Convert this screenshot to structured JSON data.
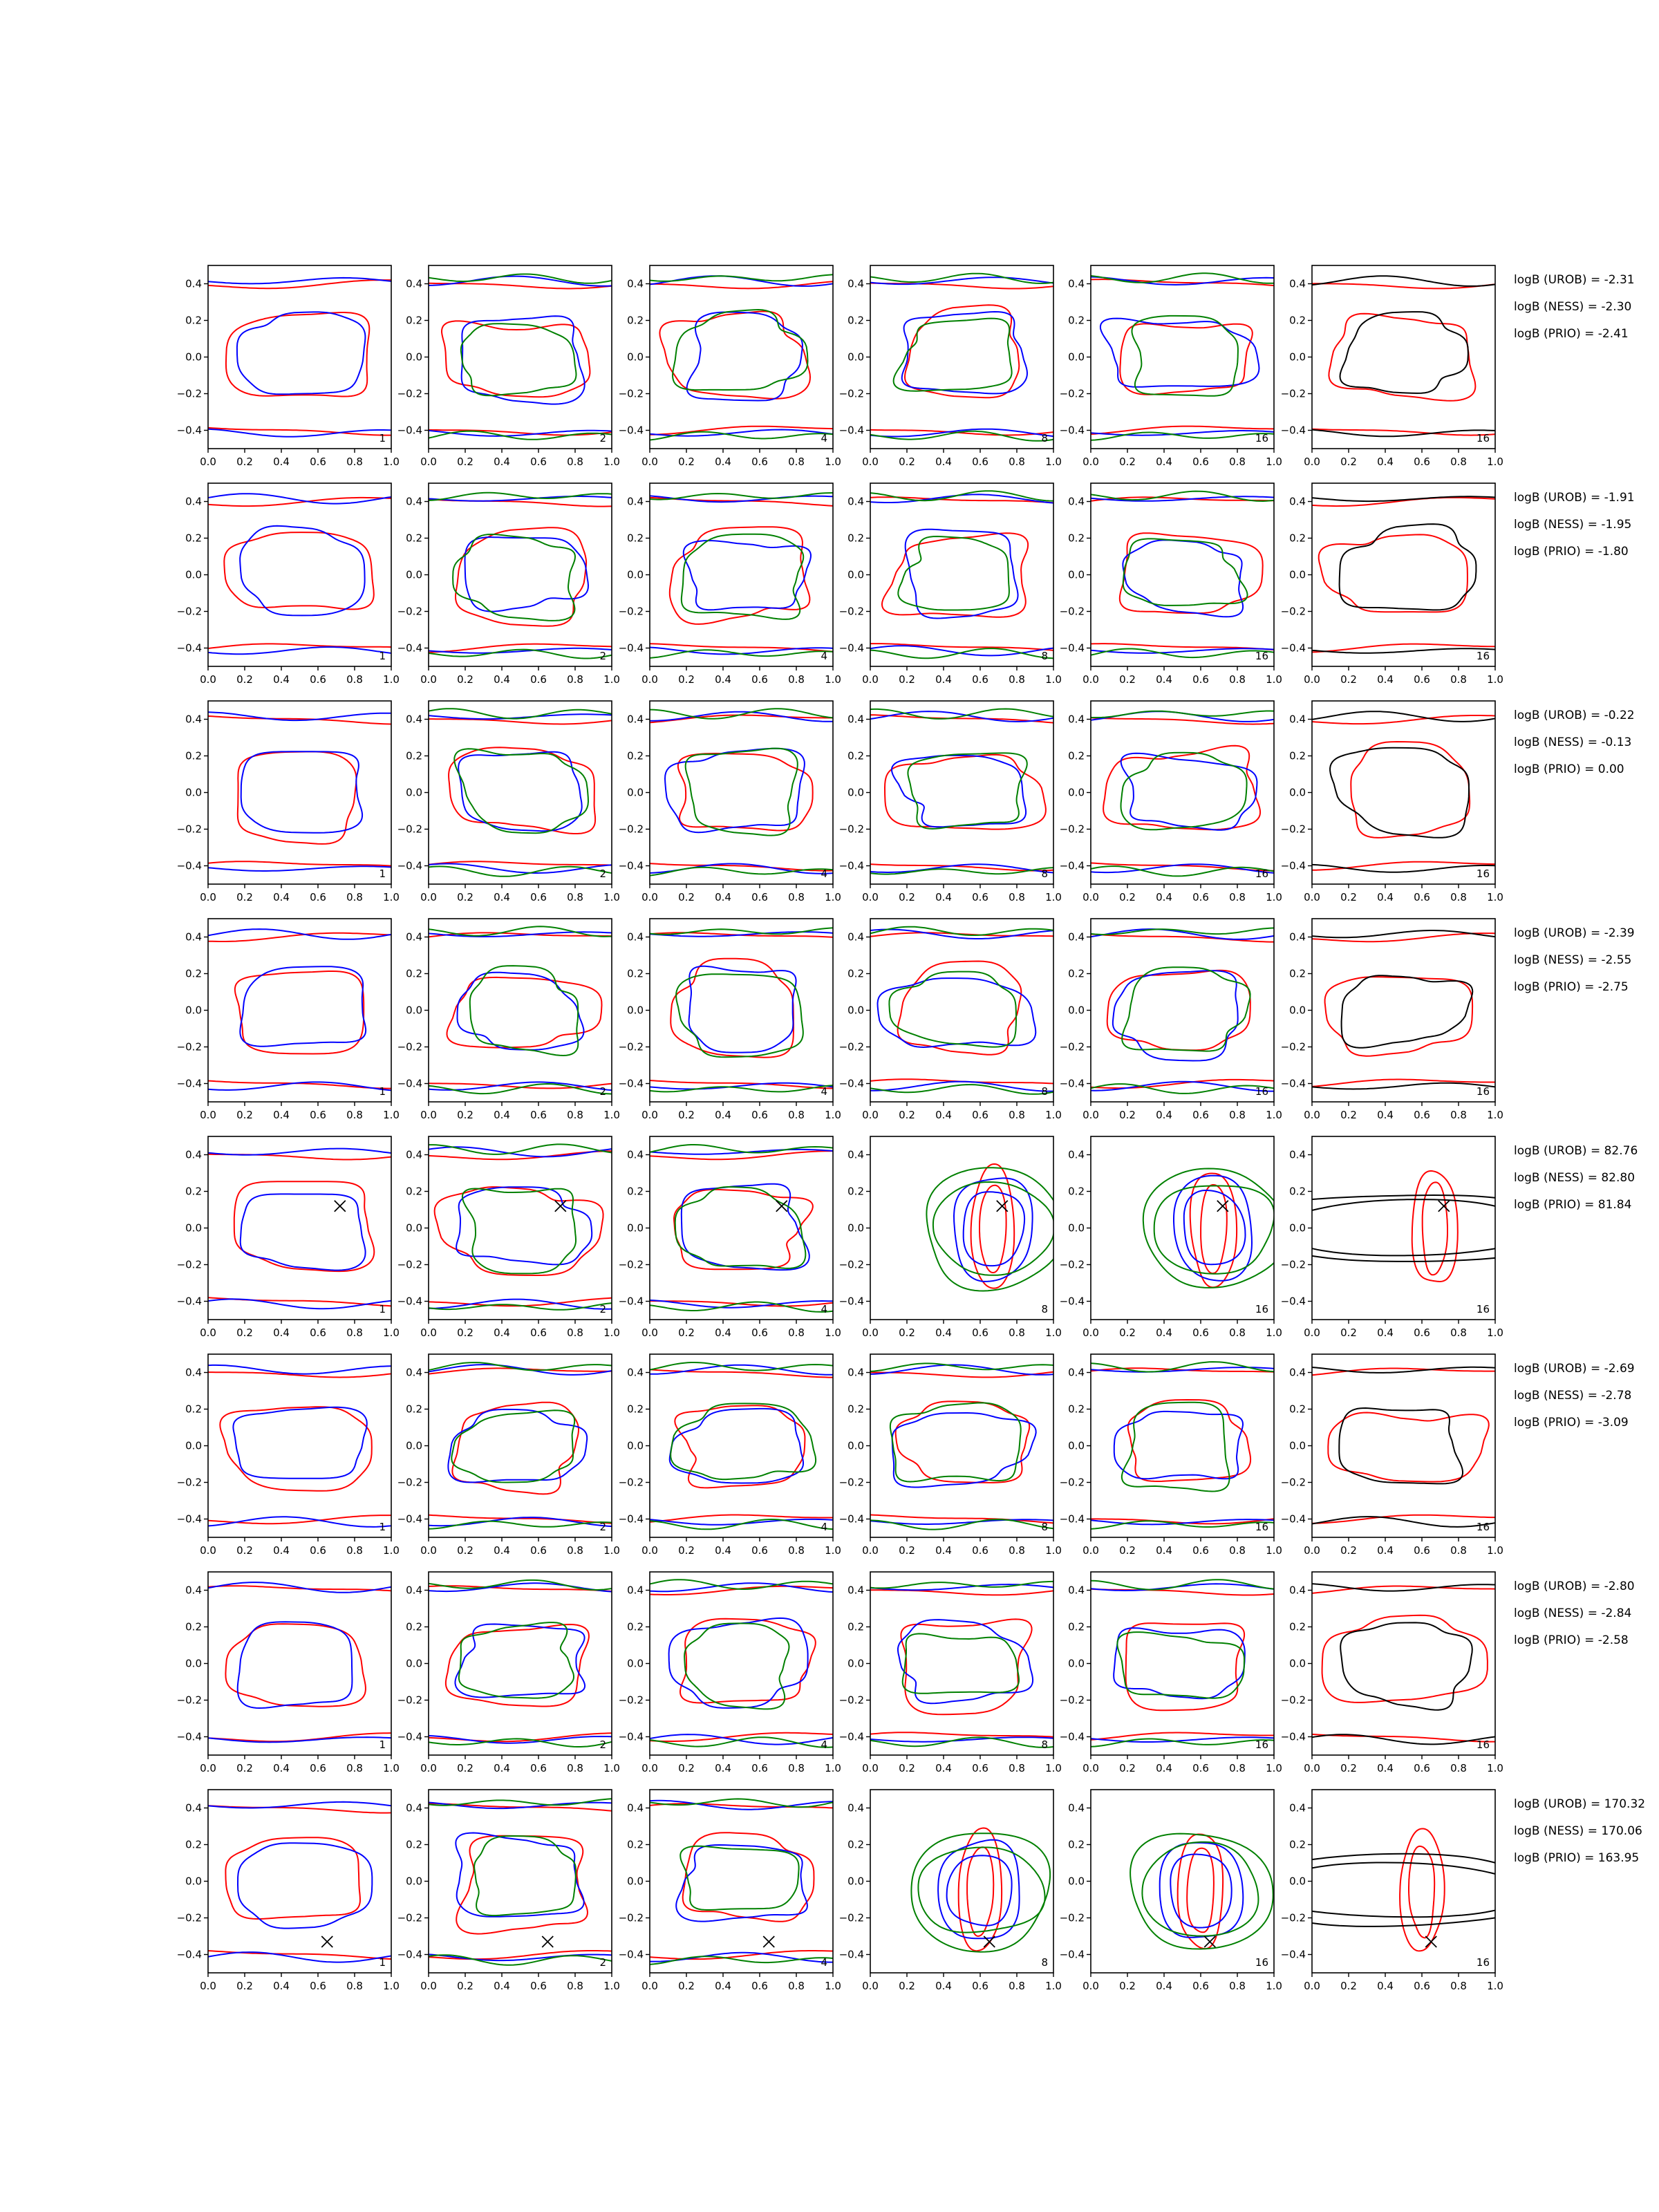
{
  "chart_data": {
    "type": "contour_grid",
    "rows": 8,
    "cols": 6,
    "xlim": [
      0.0,
      1.0
    ],
    "ylim": [
      -0.5,
      0.5
    ],
    "xticks": [
      "0.0",
      "0.2",
      "0.4",
      "0.6",
      "0.8",
      "1.0"
    ],
    "yticks": [
      "0.4",
      "0.2",
      "0.0",
      "−0.2",
      "−0.4"
    ],
    "ytick_values": [
      0.4,
      0.2,
      0.0,
      -0.2,
      -0.4
    ],
    "xtick_values": [
      0.0,
      0.2,
      0.4,
      0.6,
      0.8,
      1.0
    ],
    "panel_labels": [
      "1",
      "2",
      "4",
      "8",
      "16",
      "16"
    ],
    "colors": {
      "red": "#ff0000",
      "blue": "#0000ff",
      "green": "#008000",
      "black": "#000000"
    },
    "row_annotations": [
      [
        "logB (UROB) = -2.31",
        "logB (NESS) = -2.30",
        "logB (PRIO) = -2.41"
      ],
      [
        "logB (UROB) = -1.91",
        "logB (NESS) = -1.95",
        "logB (PRIO) = -1.80"
      ],
      [
        "logB (UROB) = -0.22",
        "logB (NESS) = -0.13",
        "logB (PRIO) = 0.00"
      ],
      [
        "logB (UROB) = -2.39",
        "logB (NESS) = -2.55",
        "logB (PRIO) = -2.75"
      ],
      [
        "logB (UROB) = 82.76",
        "logB (NESS) = 82.80",
        "logB (PRIO) = 81.84"
      ],
      [
        "logB (UROB) = -2.69",
        "logB (NESS) = -2.78",
        "logB (PRIO) = -3.09"
      ],
      [
        "logB (UROB) = -2.80",
        "logB (NESS) = -2.84",
        "logB (PRIO) = -2.58"
      ],
      [
        "logB (UROB) = 170.32",
        "logB (NESS) = 170.06",
        "logB (PRIO) = 163.95"
      ]
    ],
    "markers": [
      null,
      null,
      null,
      null,
      {
        "x": 0.72,
        "y": 0.12,
        "symbol": "x"
      },
      null,
      null,
      {
        "x": 0.65,
        "y": -0.33,
        "symbol": "x"
      }
    ]
  }
}
